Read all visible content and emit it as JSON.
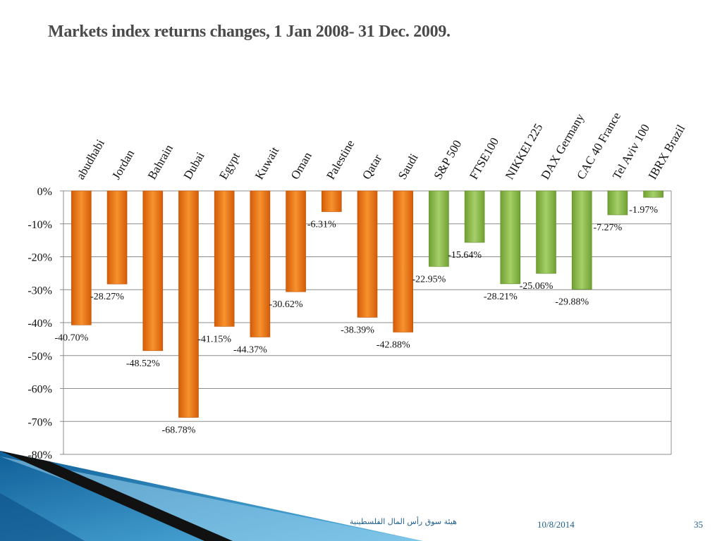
{
  "slide": {
    "title": "Markets index returns changes, 1 Jan 2008- 31 Dec. 2009.",
    "footer_org": "هيئة سوق رأس المال الفلسطينية",
    "footer_date": "10/8/2014",
    "page_number": "35"
  },
  "colors": {
    "arab_markets": "#f07818",
    "global_markets": "#8cbc48",
    "gridline": "#8c8c8c",
    "decor_blue": "#2a8cc4"
  },
  "chart_data": {
    "type": "bar",
    "title": "Markets index returns changes, 1 Jan 2008- 31 Dec. 2009.",
    "xlabel": "",
    "ylabel": "",
    "categories": [
      "abudhabi",
      "Jordan",
      "Bahrain",
      "Dubai",
      "Egypt",
      "Kuwait",
      "Oman",
      "Palestine",
      "Qatar",
      "Saudi",
      "S&P 500",
      "FTSE100",
      "NIKKEI 225",
      "DAX Germany",
      "CAC 40 France",
      "Tel Aviv 100",
      "IBRX Brazil"
    ],
    "values": [
      -40.7,
      -28.27,
      -48.52,
      -68.78,
      -41.15,
      -44.37,
      -30.62,
      -6.31,
      -38.39,
      -42.88,
      -22.95,
      -15.64,
      -28.21,
      -25.06,
      -29.88,
      -7.27,
      -1.97
    ],
    "value_labels": [
      "-40.70%",
      "-28.27%",
      "-48.52%",
      "-68.78%",
      "-41.15%",
      "-44.37%",
      "-30.62%",
      "-6.31%",
      "-38.39%",
      "-42.88%",
      "-22.95%",
      "-15.64%",
      "-28.21%",
      "-25.06%",
      "-29.88%",
      "-7.27%",
      "-1.97%"
    ],
    "bar_groups": [
      "arab",
      "arab",
      "arab",
      "arab",
      "arab",
      "arab",
      "arab",
      "arab",
      "arab",
      "arab",
      "global",
      "global",
      "global",
      "global",
      "global",
      "global",
      "global"
    ],
    "ylim": [
      -80,
      0
    ],
    "yticks": [
      0,
      -10,
      -20,
      -30,
      -40,
      -50,
      -60,
      -70,
      -80
    ],
    "ytick_labels": [
      "0%",
      "-10%",
      "-20%",
      "-30%",
      "-40%",
      "-50%",
      "-60%",
      "-70%",
      "-80%"
    ],
    "grid": true,
    "category_label_position": "top",
    "legend": "none"
  }
}
